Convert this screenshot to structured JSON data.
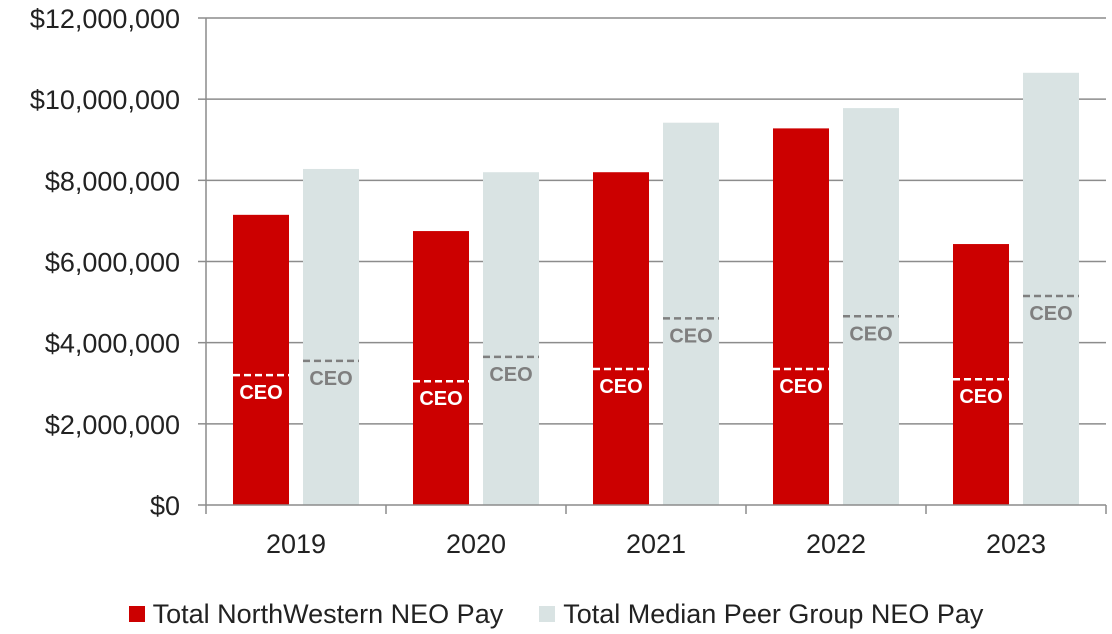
{
  "chart_data": {
    "type": "bar",
    "title": "",
    "xlabel": "",
    "ylabel": "",
    "ylim": [
      0,
      12000000
    ],
    "yticks": [
      0,
      2000000,
      4000000,
      6000000,
      8000000,
      10000000,
      12000000
    ],
    "ytick_labels": [
      "$0",
      "$2,000,000",
      "$4,000,000",
      "$6,000,000",
      "$8,000,000",
      "$10,000,000",
      "$12,000,000"
    ],
    "categories": [
      "2019",
      "2020",
      "2021",
      "2022",
      "2023"
    ],
    "grid": true,
    "series": [
      {
        "name": "Total NorthWestern NEO Pay",
        "color": "#cc0000",
        "values": [
          7150000,
          6750000,
          8200000,
          9280000,
          6430000
        ],
        "ceo_values": [
          3200000,
          3050000,
          3350000,
          3350000,
          3100000
        ]
      },
      {
        "name": "Total Median Peer Group NEO Pay",
        "color": "#d9e3e3",
        "values": [
          8280000,
          8200000,
          9420000,
          9780000,
          10650000
        ],
        "ceo_values": [
          3550000,
          3650000,
          4600000,
          4650000,
          5150000
        ]
      }
    ],
    "marker_label": "CEO",
    "legend_position": "bottom"
  }
}
